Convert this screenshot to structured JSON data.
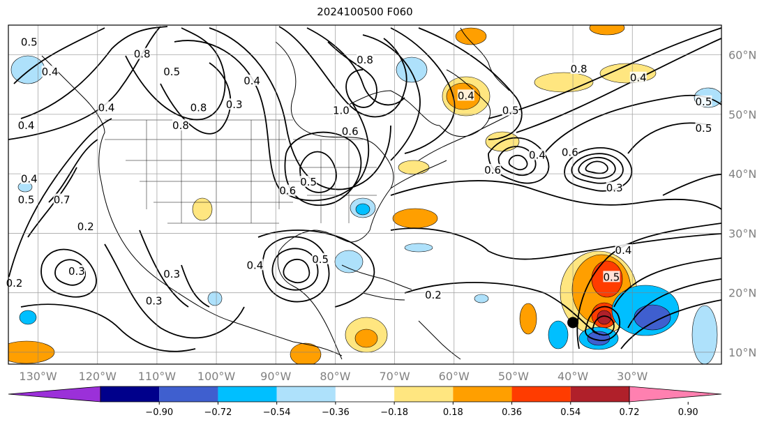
{
  "title": "2024100500 F060",
  "map": {
    "lon_range": [
      -135,
      -15
    ],
    "lat_range": [
      8,
      65
    ],
    "lon_ticks": [
      {
        "value": -130,
        "label": "130°W"
      },
      {
        "value": -120,
        "label": "120°W"
      },
      {
        "value": -110,
        "label": "110°W"
      },
      {
        "value": -100,
        "label": "100°W"
      },
      {
        "value": -90,
        "label": "90°W"
      },
      {
        "value": -80,
        "label": "80°W"
      },
      {
        "value": -70,
        "label": "70°W"
      },
      {
        "value": -60,
        "label": "60°W"
      },
      {
        "value": -50,
        "label": "50°W"
      },
      {
        "value": -40,
        "label": "40°W"
      },
      {
        "value": -30,
        "label": "30°W"
      }
    ],
    "lat_ticks": [
      {
        "value": 60,
        "label": "60°N"
      },
      {
        "value": 50,
        "label": "50°N"
      },
      {
        "value": 40,
        "label": "40°N"
      },
      {
        "value": 30,
        "label": "30°N"
      },
      {
        "value": 20,
        "label": "20°N"
      },
      {
        "value": 10,
        "label": "10°N"
      }
    ],
    "grid": true,
    "storm_marker": {
      "lon": -40,
      "lat": 15
    }
  },
  "contour_labels": [
    {
      "text": "0.5",
      "lon": -131.5,
      "lat": 62
    },
    {
      "text": "0.4",
      "lon": -128,
      "lat": 57
    },
    {
      "text": "0.4",
      "lon": -118.5,
      "lat": 51
    },
    {
      "text": "0.4",
      "lon": -132,
      "lat": 48
    },
    {
      "text": "0.8",
      "lon": -112.5,
      "lat": 60
    },
    {
      "text": "0.5",
      "lon": -107.5,
      "lat": 57
    },
    {
      "text": "0.8",
      "lon": -103,
      "lat": 51
    },
    {
      "text": "0.8",
      "lon": -106,
      "lat": 48
    },
    {
      "text": "0.4",
      "lon": -94,
      "lat": 55.5
    },
    {
      "text": "0.3",
      "lon": -97,
      "lat": 51.5
    },
    {
      "text": "0.8",
      "lon": -75,
      "lat": 59
    },
    {
      "text": "1.0",
      "lon": -79,
      "lat": 50.5
    },
    {
      "text": "0.6",
      "lon": -77.5,
      "lat": 47
    },
    {
      "text": "0.4",
      "lon": -58,
      "lat": 53
    },
    {
      "text": "0.5",
      "lon": -50.5,
      "lat": 50.5
    },
    {
      "text": "0.8",
      "lon": -39,
      "lat": 57.5
    },
    {
      "text": "0.4",
      "lon": -29,
      "lat": 56
    },
    {
      "text": "0.5",
      "lon": -18,
      "lat": 52
    },
    {
      "text": "0.5",
      "lon": -18,
      "lat": 47.5
    },
    {
      "text": "0.4",
      "lon": -46,
      "lat": 43
    },
    {
      "text": "0.6",
      "lon": -40.5,
      "lat": 43.5
    },
    {
      "text": "0.6",
      "lon": -53.5,
      "lat": 40.5
    },
    {
      "text": "0.3",
      "lon": -33,
      "lat": 37.5
    },
    {
      "text": "0.4",
      "lon": -131.5,
      "lat": 39
    },
    {
      "text": "0.5",
      "lon": -132,
      "lat": 35.5
    },
    {
      "text": "0.7",
      "lon": -126,
      "lat": 35.5
    },
    {
      "text": "0.2",
      "lon": -122,
      "lat": 31
    },
    {
      "text": "0.6",
      "lon": -88,
      "lat": 37
    },
    {
      "text": "0.5",
      "lon": -84.5,
      "lat": 38.5
    },
    {
      "text": "0.3",
      "lon": -123.5,
      "lat": 23.5
    },
    {
      "text": "0.2",
      "lon": -134,
      "lat": 21.5
    },
    {
      "text": "0.3",
      "lon": -107.5,
      "lat": 23
    },
    {
      "text": "0.3",
      "lon": -110.5,
      "lat": 18.5
    },
    {
      "text": "0.4",
      "lon": -93.5,
      "lat": 24.5
    },
    {
      "text": "0.5",
      "lon": -82.5,
      "lat": 25.5
    },
    {
      "text": "0.2",
      "lon": -63.5,
      "lat": 19.5
    },
    {
      "text": "0.4",
      "lon": -31.5,
      "lat": 27
    },
    {
      "text": "0.5",
      "lon": -33.5,
      "lat": 22.5
    }
  ],
  "colorbar": {
    "ticks": [
      "−0.90",
      "−0.72",
      "−0.54",
      "−0.36",
      "−0.18",
      "0.18",
      "0.36",
      "0.54",
      "0.72",
      "0.90"
    ],
    "colors": [
      "#9b30d9",
      "#00008b",
      "#3f5fcf",
      "#00bfff",
      "#aee1fb",
      "#ffffff",
      "#ffe680",
      "#ff9f00",
      "#ff3c00",
      "#b0202a",
      "#ff80b0"
    ]
  }
}
